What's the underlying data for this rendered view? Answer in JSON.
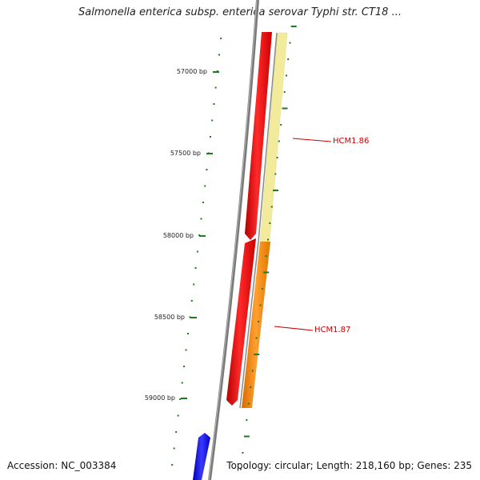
{
  "title": "Salmonella enterica subsp. enterica serovar Typhi str. CT18 ...",
  "footer": {
    "accession": "Accession: NC_003384",
    "summary": "Topology: circular; Length: 218,160 bp; Genes: 235"
  },
  "ruler": {
    "labels": [
      "57000 bp",
      "57500 bp",
      "58000 bp",
      "58500 bp",
      "59000 bp"
    ],
    "color": "#1f7a1f"
  },
  "features": [
    {
      "name": "HCM1.86",
      "label_color": "#cc0000",
      "track_color": "#f3eb9c"
    },
    {
      "name": "HCM1.87",
      "label_color": "#cc0000",
      "track_color": "#ff8c1a"
    }
  ],
  "colors": {
    "backbone": "#7a7a7a",
    "forward_gene": "#ff1a1a",
    "reverse_gene": "#1a1aff"
  }
}
